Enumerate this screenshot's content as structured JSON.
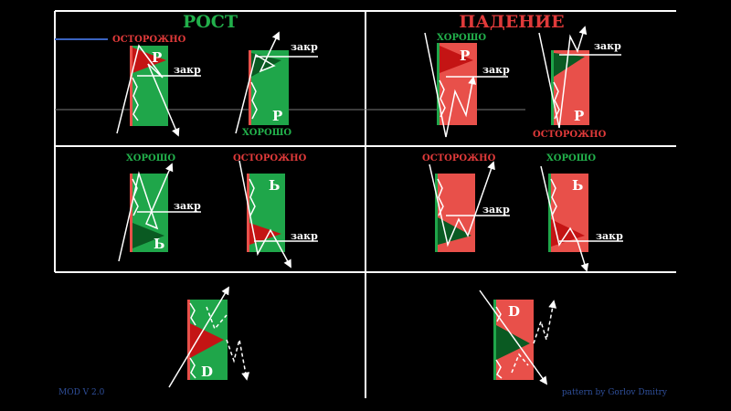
{
  "headings": {
    "rise": "РОСТ",
    "fall": "ПАДЕНИЕ"
  },
  "words": {
    "careful": "ОСТОРОЖНО",
    "good": "ХОРОШО",
    "close": "закр"
  },
  "letters": {
    "p": "Р",
    "soft": "Ь",
    "d": "D"
  },
  "footer": {
    "version": "MOD V 2.0",
    "credit": "pattern by Gorlov Dmitry"
  },
  "colors": {
    "background": "#000000",
    "grid": "#ffffff",
    "green_box": "#1fa64a",
    "red_box": "#e8504a",
    "dark_green": "#0a5a22",
    "dark_red": "#c41414",
    "heading_green": "#22b04b",
    "heading_red": "#e03a3a",
    "footer_blue": "#2f4f9a"
  }
}
